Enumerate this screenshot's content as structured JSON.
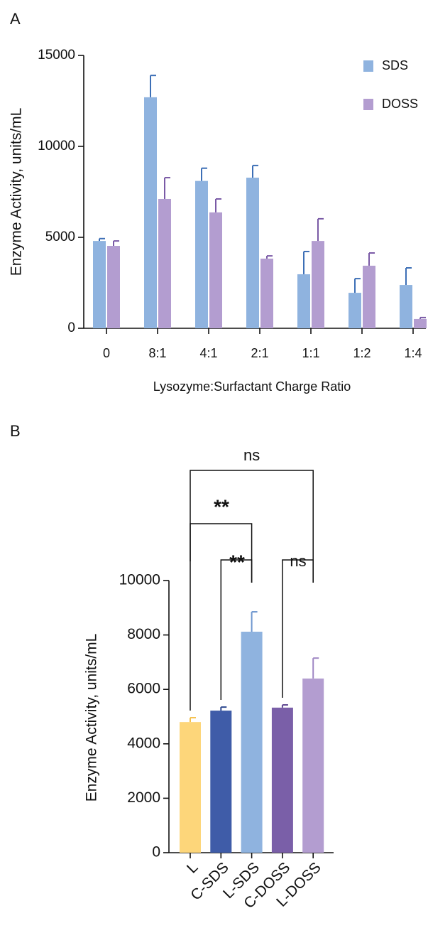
{
  "chart_data": [
    {
      "type": "bar",
      "label": "A",
      "x_label": "Lysozyme:Surfactant Charge Ratio",
      "y_label": "Enzyme Activity, units/mL",
      "categories": [
        "0",
        "8:1",
        "4:1",
        "2:1",
        "1:1",
        "1:2",
        "1:4"
      ],
      "series": [
        {
          "name": "SDS",
          "color": "#8fb3df",
          "error_color": "#3d6fb6",
          "values": [
            4800,
            12700,
            8100,
            8280,
            2970,
            1950,
            2380
          ],
          "errors": [
            130,
            1200,
            700,
            670,
            1250,
            780,
            940
          ]
        },
        {
          "name": "DOSS",
          "color": "#b39dd0",
          "error_color": "#7a5aa6",
          "values": [
            4530,
            7110,
            6370,
            3830,
            4800,
            3440,
            510
          ],
          "errors": [
            270,
            1170,
            740,
            150,
            1220,
            700,
            80
          ]
        }
      ],
      "ylim": [
        0,
        15000
      ],
      "yticks": [
        0,
        5000,
        10000,
        15000
      ],
      "legend": "upper right"
    },
    {
      "type": "bar",
      "label": "B",
      "y_label": "Enzyme Activity, units/mL",
      "categories": [
        "L",
        "C-SDS",
        "L-SDS",
        "C-DOSS",
        "L-DOSS"
      ],
      "values": [
        4800,
        5220,
        8120,
        5330,
        6400
      ],
      "errors": [
        160,
        130,
        730,
        100,
        750
      ],
      "colors": [
        "#fdd67a",
        "#3f5ca8",
        "#8fb3df",
        "#7a5fa8",
        "#b39dd0"
      ],
      "error_colors": [
        "#f5c14f",
        "#2f4a8f",
        "#6f97cf",
        "#5f4790",
        "#a088c4"
      ],
      "annotations": [
        "ns",
        "**",
        "**",
        "ns"
      ],
      "ylim": [
        0,
        10000
      ],
      "yticks": [
        0,
        2000,
        4000,
        6000,
        8000,
        10000
      ]
    }
  ]
}
